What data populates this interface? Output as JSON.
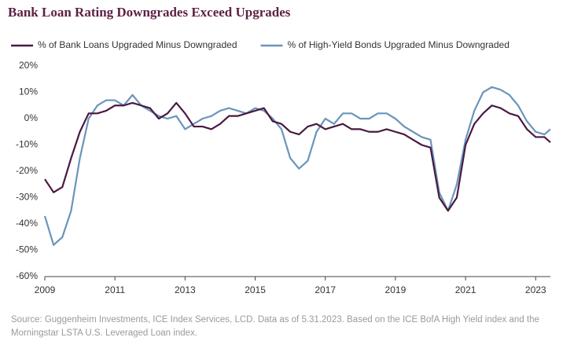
{
  "chart_data": {
    "type": "line",
    "title": "Bank Loan Rating Downgrades Exceed Upgrades",
    "x": [
      2009.0,
      2009.25,
      2009.5,
      2009.75,
      2010.0,
      2010.25,
      2010.5,
      2010.75,
      2011.0,
      2011.25,
      2011.5,
      2011.75,
      2012.0,
      2012.25,
      2012.5,
      2012.75,
      2013.0,
      2013.25,
      2013.5,
      2013.75,
      2014.0,
      2014.25,
      2014.5,
      2014.75,
      2015.0,
      2015.25,
      2015.5,
      2015.75,
      2016.0,
      2016.25,
      2016.5,
      2016.75,
      2017.0,
      2017.25,
      2017.5,
      2017.75,
      2018.0,
      2018.25,
      2018.5,
      2018.75,
      2019.0,
      2019.25,
      2019.5,
      2019.75,
      2020.0,
      2020.25,
      2020.5,
      2020.75,
      2021.0,
      2021.25,
      2021.5,
      2021.75,
      2022.0,
      2022.25,
      2022.5,
      2022.75,
      2023.0,
      2023.25,
      2023.42
    ],
    "series": [
      {
        "name": "% of Bank Loans Upgraded Minus Downgraded",
        "color": "#4a1942",
        "values": [
          -23,
          -28,
          -26,
          -15,
          -5,
          2,
          2,
          3,
          5,
          5,
          6,
          5,
          4,
          0,
          2,
          6,
          2,
          -3,
          -3,
          -4,
          -2,
          1,
          1,
          2,
          3,
          4,
          -1,
          -2,
          -5,
          -6,
          -3,
          -2,
          -4,
          -3,
          -2,
          -4,
          -4,
          -5,
          -5,
          -4,
          -5,
          -6,
          -8,
          -10,
          -11,
          -30,
          -35,
          -30,
          -10,
          -2,
          2,
          5,
          4,
          2,
          1,
          -4,
          -7,
          -7,
          -9
        ]
      },
      {
        "name": "% of High-Yield Bonds Upgraded Minus Downgraded",
        "color": "#6a95bc",
        "values": [
          -37,
          -48,
          -45,
          -35,
          -15,
          0,
          5,
          7,
          7,
          5,
          9,
          5,
          3,
          1,
          0,
          1,
          -4,
          -2,
          0,
          1,
          3,
          4,
          3,
          2,
          4,
          3,
          0,
          -4,
          -15,
          -19,
          -16,
          -5,
          0,
          -2,
          2,
          2,
          0,
          0,
          2,
          2,
          0,
          -3,
          -5,
          -7,
          -8,
          -28,
          -35,
          -25,
          -8,
          3,
          10,
          12,
          11,
          9,
          5,
          -1,
          -5,
          -6,
          -4
        ]
      }
    ],
    "xlim": [
      2009,
      2023.42
    ],
    "xticks": [
      2009,
      2011,
      2013,
      2015,
      2017,
      2019,
      2021,
      2023
    ],
    "ylim": [
      -60,
      20
    ],
    "yticks": [
      {
        "value": -60,
        "label": "-60%"
      },
      {
        "value": -50,
        "label": "-50%"
      },
      {
        "value": -40,
        "label": "-40%"
      },
      {
        "value": -30,
        "label": "-30%"
      },
      {
        "value": -20,
        "label": "-20%"
      },
      {
        "value": -10,
        "label": "-10%"
      },
      {
        "value": 0,
        "label": "0%"
      },
      {
        "value": 10,
        "label": "10%"
      },
      {
        "value": 20,
        "label": "20%"
      }
    ],
    "source": [
      "Source: Guggenheim Investments, ICE Index Services, LCD. Data as of 5.31.2023. Based on the ICE BofA High Yield index and the",
      "Morningstar LSTA U.S. Leveraged Loan index."
    ]
  }
}
